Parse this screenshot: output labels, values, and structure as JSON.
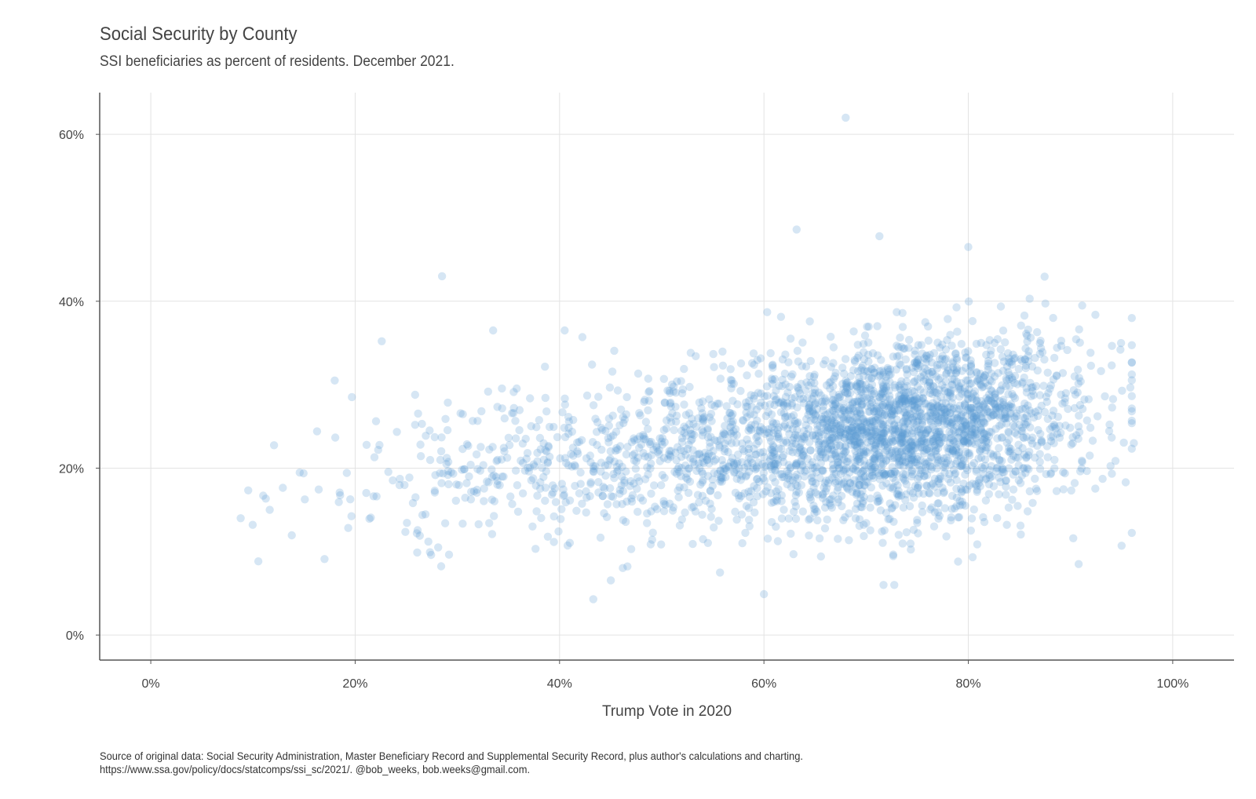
{
  "chart_data": {
    "type": "scatter",
    "title": "Social Security by County",
    "subtitle": "SSI beneficiaries as percent of residents. December 2021.",
    "xlabel": "Trump Vote in 2020",
    "ylabel": "",
    "xlim": [
      -0.05,
      1.06
    ],
    "ylim": [
      -0.03,
      0.65
    ],
    "x_ticks": [
      0,
      0.2,
      0.4,
      0.6,
      0.8,
      1.0
    ],
    "x_tick_labels": [
      "0%",
      "20%",
      "40%",
      "60%",
      "80%",
      "100%"
    ],
    "y_ticks": [
      0,
      0.2,
      0.4,
      0.6
    ],
    "y_tick_labels": [
      "0%",
      "20%",
      "40%",
      "60%"
    ],
    "grid": true,
    "point_color": "#5b9bd5",
    "point_opacity": 0.25,
    "n_points": 3100,
    "notable_points": [
      {
        "x": 0.68,
        "y": 0.62
      },
      {
        "x": 0.632,
        "y": 0.486
      },
      {
        "x": 0.713,
        "y": 0.478
      },
      {
        "x": 0.8,
        "y": 0.465
      },
      {
        "x": 0.285,
        "y": 0.43
      },
      {
        "x": 0.433,
        "y": 0.043
      },
      {
        "x": 0.6,
        "y": 0.049
      },
      {
        "x": 0.557,
        "y": 0.075
      },
      {
        "x": 0.883,
        "y": 0.38
      },
      {
        "x": 0.908,
        "y": 0.085
      },
      {
        "x": 0.962,
        "y": 0.23
      },
      {
        "x": 0.088,
        "y": 0.14
      },
      {
        "x": 0.11,
        "y": 0.167
      },
      {
        "x": 0.17,
        "y": 0.091
      },
      {
        "x": 0.18,
        "y": 0.305
      },
      {
        "x": 0.226,
        "y": 0.352
      },
      {
        "x": 0.335,
        "y": 0.365
      },
      {
        "x": 0.405,
        "y": 0.365
      },
      {
        "x": 0.95,
        "y": 0.107
      },
      {
        "x": 0.954,
        "y": 0.183
      },
      {
        "x": 0.79,
        "y": 0.088
      }
    ]
  },
  "caption": {
    "line1": "Source of original data: Social Security Administration, Master Beneficiary Record and Supplemental Security Record, plus author's calculations and charting.",
    "line2": "https://www.ssa.gov/policy/docs/statcomps/ssi_sc/2021/. @bob_weeks, bob.weeks@gmail.com."
  }
}
